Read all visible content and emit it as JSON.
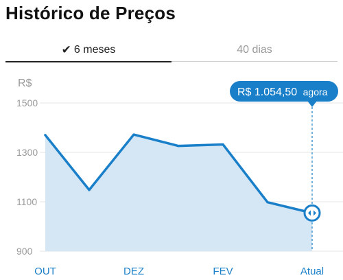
{
  "header": {
    "title": "Histórico de Preços"
  },
  "tabs": [
    {
      "label": "6 meses",
      "active": true,
      "icon": "check-icon"
    },
    {
      "label": "40 dias",
      "active": false
    }
  ],
  "tooltip": {
    "price": "R$ 1.054,50",
    "suffix": "agora"
  },
  "colors": {
    "accent": "#1a7fc9",
    "fill": "#d5e6f5",
    "grid": "#e5e5e5"
  },
  "chart_data": {
    "type": "area",
    "ylabel": "R$",
    "yticks": [
      900,
      1100,
      1300,
      1500
    ],
    "ylim": [
      900,
      1600
    ],
    "x_labels": [
      "OUT",
      "DEZ",
      "FEV",
      "Atual"
    ],
    "values": [
      1370,
      1148,
      1372,
      1326,
      1332,
      1098,
      1054.5
    ],
    "grid": true
  }
}
